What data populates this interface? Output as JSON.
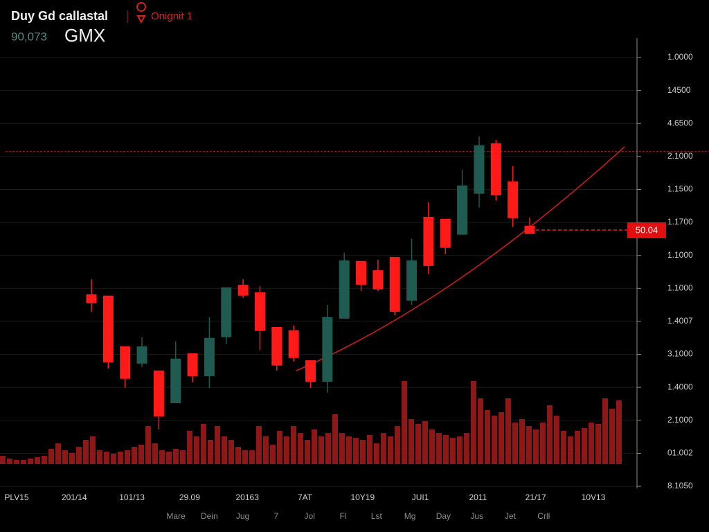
{
  "chart_data": {
    "type": "candlestick",
    "title": "Duy Gd callastal",
    "subtitle": "Onignit 1",
    "price": "90,073",
    "symbol": "GMX",
    "price_tag": "50.04",
    "up_color": "#1f5b50",
    "down_color": "#ff1a1a",
    "hline": 10.15,
    "hline_color": "#a01818",
    "grid": true,
    "ylim": [
      -0.1,
      13.6
    ],
    "yticks": [
      {
        "value": 0,
        "label": "8.1050"
      },
      {
        "value": 1,
        "label": "01.002"
      },
      {
        "value": 2,
        "label": "2.1000"
      },
      {
        "value": 3,
        "label": "1.4000"
      },
      {
        "value": 4,
        "label": "3.1000"
      },
      {
        "value": 5,
        "label": "1.4007"
      },
      {
        "value": 6,
        "label": "1.1000"
      },
      {
        "value": 7,
        "label": "1.1000"
      },
      {
        "value": 8,
        "label": "1.1700"
      },
      {
        "value": 9,
        "label": "1.1500"
      },
      {
        "value": 10,
        "label": "2.1000"
      },
      {
        "value": 11,
        "label": "4.6500"
      },
      {
        "value": 12,
        "label": "14500"
      },
      {
        "value": 13,
        "label": "1.0000"
      }
    ],
    "x_labels": [
      "PLV15",
      "201/14",
      "101/13",
      "29.09",
      "20163",
      "7AT",
      "10Y19",
      "JUI1",
      "2011",
      "21/17",
      "10V13"
    ],
    "x_labels_2": [
      "Mare",
      "Dein",
      "Jug",
      "7",
      "Jol",
      "Fl",
      "Lst",
      "Mg",
      "Day",
      "Jus",
      "Jet",
      "Crll"
    ],
    "open": [
      5.82,
      5.78,
      4.24,
      3.72,
      3.51,
      2.52,
      4.03,
      3.34,
      4.52,
      6.11,
      5.88,
      4.83,
      4.73,
      3.82,
      3.17,
      5.08,
      6.83,
      6.55,
      6.95,
      5.63,
      8.17,
      8.11,
      7.63,
      8.87,
      10.4,
      9.24,
      7.9
    ],
    "high": [
      6.28,
      5.78,
      4.24,
      4.52,
      3.51,
      4.39,
      4.03,
      5.13,
      6.03,
      6.28,
      6.07,
      4.83,
      4.87,
      3.82,
      5.5,
      7.08,
      6.83,
      6.87,
      6.95,
      7.5,
      8.61,
      8.11,
      9.6,
      10.61,
      10.5,
      9.71,
      8.15
    ],
    "low": [
      5.29,
      3.57,
      2.98,
      3.61,
      1.72,
      2.52,
      3.15,
      2.98,
      4.31,
      5.71,
      4.14,
      3.51,
      3.78,
      2.98,
      2.84,
      5.08,
      5.92,
      5.92,
      5.19,
      5.5,
      6.43,
      7.04,
      7.63,
      8.45,
      8.66,
      7.86,
      7.65
    ],
    "close": [
      5.55,
      3.76,
      3.26,
      4.24,
      2.12,
      3.87,
      3.34,
      4.5,
      6.03,
      5.78,
      4.71,
      3.66,
      3.89,
      3.17,
      5.13,
      6.85,
      6.11,
      5.97,
      5.29,
      6.85,
      6.68,
      7.23,
      9.12,
      10.34,
      8.82,
      8.13,
      7.65
    ],
    "volume": {
      "color": "#8e1717",
      "y2lim": [
        0,
        200
      ],
      "values": [
        12,
        8,
        6,
        6,
        8,
        10,
        12,
        22,
        30,
        20,
        16,
        25,
        35,
        40,
        20,
        18,
        15,
        18,
        20,
        25,
        28,
        55,
        30,
        20,
        18,
        22,
        20,
        48,
        40,
        58,
        35,
        55,
        40,
        35,
        25,
        20,
        20,
        55,
        40,
        28,
        48,
        40,
        55,
        45,
        35,
        50,
        40,
        45,
        72,
        45,
        40,
        38,
        35,
        42,
        30,
        45,
        40,
        55,
        120,
        65,
        58,
        62,
        50,
        45,
        42,
        38,
        40,
        45,
        120,
        95,
        78,
        70,
        75,
        95,
        60,
        65,
        55,
        50,
        60,
        85,
        70,
        48,
        40,
        48,
        52,
        60,
        58,
        95,
        80,
        92
      ]
    }
  }
}
